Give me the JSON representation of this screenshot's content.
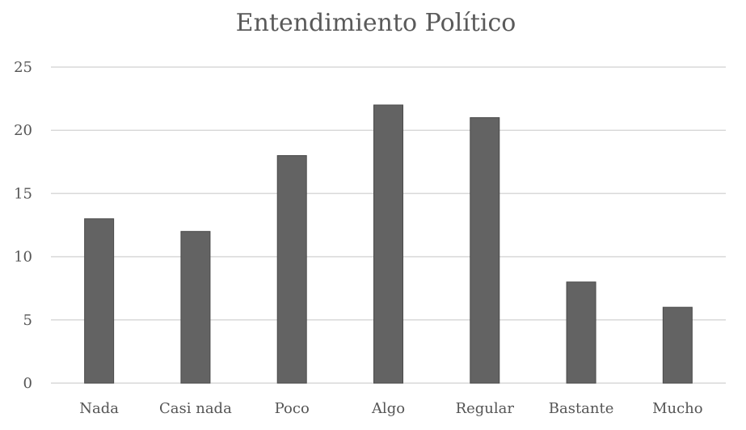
{
  "chart_data": {
    "type": "bar",
    "title": "Entendimiento Político",
    "xlabel": "",
    "ylabel": "",
    "categories": [
      "Nada",
      "Casi nada",
      "Poco",
      "Algo",
      "Regular",
      "Bastante",
      "Mucho"
    ],
    "values": [
      13,
      12,
      18,
      22,
      21,
      8,
      6
    ],
    "ylim": [
      0,
      25
    ],
    "yticks": [
      "0",
      "5",
      "10",
      "15",
      "20",
      "25"
    ],
    "grid": true,
    "legend": "none",
    "colors": {
      "bar": "#636363",
      "grid": "#d9d9d9",
      "text": "#555555"
    }
  }
}
